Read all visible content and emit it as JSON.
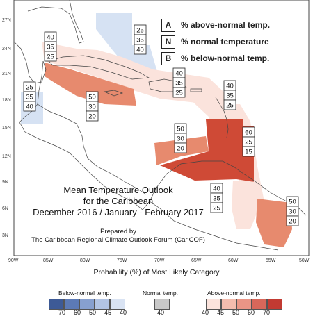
{
  "legend": {
    "rows": [
      {
        "key": "A",
        "text": "% above-normal temp."
      },
      {
        "key": "N",
        "text": "% normal temperature"
      },
      {
        "key": "B",
        "text": "% below-normal temp."
      }
    ]
  },
  "map": {
    "title_lines": [
      "Mean Temperature Outlook",
      "for the Caribbean",
      "December 2016 / January - February 2017"
    ],
    "credit_lines": [
      "Prepared by",
      "The Caribbean Regional Climate Outlook Forum (CariCOF)"
    ],
    "lat_ticks": [
      "27N",
      "24N",
      "21N",
      "18N",
      "15N",
      "12N",
      "9N",
      "6N",
      "3N"
    ],
    "lon_ticks": [
      "90W",
      "85W",
      "80W",
      "75W",
      "70W",
      "65W",
      "60W",
      "55W",
      "50W"
    ],
    "probability_boxes": [
      {
        "name": "bahamas",
        "values": [
          "25",
          "35",
          "40"
        ]
      },
      {
        "name": "cuba-north",
        "values": [
          "40",
          "35",
          "25"
        ]
      },
      {
        "name": "belize-yucatan",
        "values": [
          "25",
          "35",
          "40"
        ]
      },
      {
        "name": "western-caribbean",
        "values": [
          "50",
          "30",
          "20"
        ]
      },
      {
        "name": "hispaniola",
        "values": [
          "40",
          "35",
          "25"
        ]
      },
      {
        "name": "lesser-antilles",
        "values": [
          "40",
          "35",
          "25"
        ]
      },
      {
        "name": "central-caribbean",
        "values": [
          "50",
          "30",
          "20"
        ]
      },
      {
        "name": "southern-caribbean",
        "values": [
          "60",
          "25",
          "15"
        ]
      },
      {
        "name": "guyana",
        "values": [
          "40",
          "35",
          "25"
        ]
      },
      {
        "name": "suriname",
        "values": [
          "50",
          "30",
          "20"
        ]
      }
    ],
    "colors": {
      "above_40": "#fbe3dc",
      "above_50": "#e78a6e",
      "above_60": "#cf4a36",
      "below_40": "#d6e2f3",
      "land_line": "#444444"
    }
  },
  "colorbar": {
    "title": "Probability (%) of Most Likely Category",
    "below_label": "Below-normal temp.",
    "normal_label": "Normal temp.",
    "above_label": "Above-normal temp.",
    "below_nums": [
      "70",
      "60",
      "50",
      "45",
      "40"
    ],
    "normal_nums": [
      "40"
    ],
    "above_nums": [
      "40",
      "45",
      "50",
      "60",
      "70"
    ],
    "below_colors": [
      "#3d5a96",
      "#5c7ab6",
      "#87a0cf",
      "#b2c4e4",
      "#d9e3f3"
    ],
    "normal_color": "#c8c8c8",
    "above_colors": [
      "#fbe3dc",
      "#f4bcae",
      "#ea9586",
      "#d8675a",
      "#c23a32"
    ]
  }
}
